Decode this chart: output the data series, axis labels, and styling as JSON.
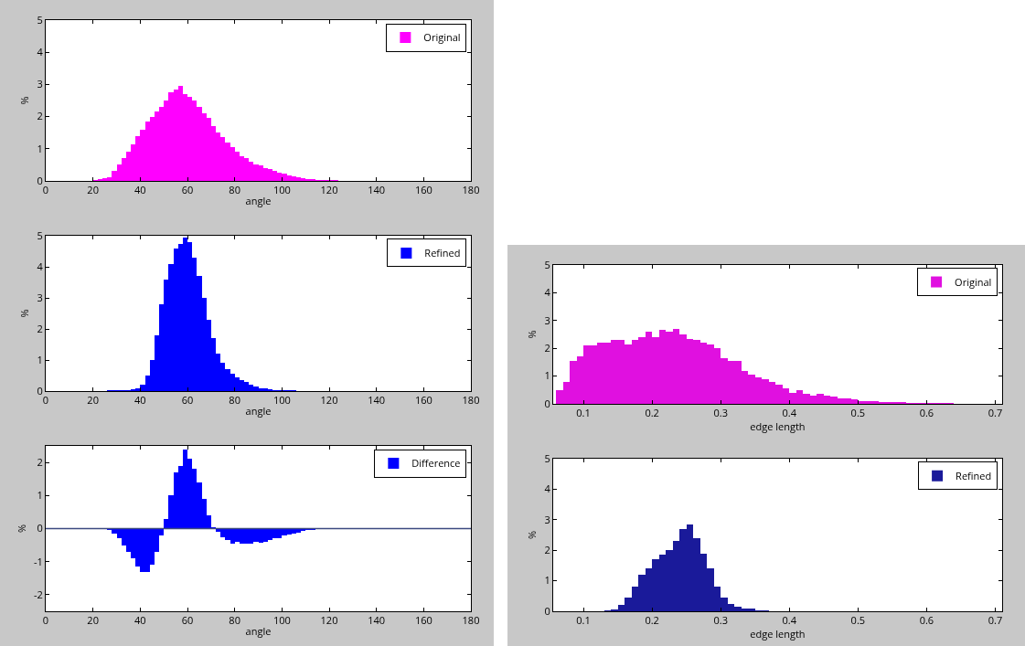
{
  "chart_data": [
    {
      "type": "histogram",
      "xlabel": "angle",
      "ylabel": "%",
      "legend": "top right",
      "xlim": [
        0,
        180
      ],
      "xticks": [
        0,
        20,
        40,
        60,
        80,
        100,
        120,
        140,
        160,
        180
      ],
      "ylim": [
        0,
        5
      ],
      "yticks": [
        0,
        1,
        2,
        3,
        4,
        5
      ],
      "grid": false,
      "bins": [
        20,
        22,
        24,
        26,
        28,
        30,
        32,
        34,
        36,
        38,
        40,
        42,
        44,
        46,
        48,
        50,
        52,
        54,
        56,
        58,
        60,
        62,
        64,
        66,
        68,
        70,
        72,
        74,
        76,
        78,
        80,
        82,
        84,
        86,
        88,
        90,
        92,
        94,
        96,
        98,
        100,
        102,
        104,
        106,
        108,
        110,
        112,
        114,
        116,
        118,
        120,
        122,
        124,
        126,
        128,
        130,
        132,
        134,
        136
      ],
      "series": [
        {
          "name": "Original",
          "color": "#ff00ff",
          "values": [
            0.02,
            0.05,
            0.08,
            0.12,
            0.3,
            0.5,
            0.7,
            0.9,
            1.15,
            1.4,
            1.6,
            1.85,
            2.0,
            2.15,
            2.3,
            2.5,
            2.75,
            2.85,
            2.95,
            2.7,
            2.6,
            2.5,
            2.3,
            2.1,
            1.95,
            1.7,
            1.5,
            1.35,
            1.2,
            1.05,
            0.9,
            0.78,
            0.7,
            0.6,
            0.52,
            0.48,
            0.4,
            0.38,
            0.3,
            0.25,
            0.22,
            0.18,
            0.15,
            0.12,
            0.08,
            0.07,
            0.05,
            0.04,
            0.03,
            0.03,
            0.02,
            0.02,
            0.01,
            0.01,
            0.01,
            0.01,
            0.01,
            0.01
          ]
        }
      ]
    },
    {
      "type": "histogram",
      "xlabel": "angle",
      "ylabel": "%",
      "legend": "top right",
      "xlim": [
        0,
        180
      ],
      "xticks": [
        0,
        20,
        40,
        60,
        80,
        100,
        120,
        140,
        160,
        180
      ],
      "ylim": [
        0,
        5
      ],
      "yticks": [
        0,
        1,
        2,
        3,
        4,
        5
      ],
      "grid": false,
      "bins": [
        26,
        28,
        30,
        32,
        34,
        36,
        38,
        40,
        42,
        44,
        46,
        48,
        50,
        52,
        54,
        56,
        58,
        60,
        62,
        64,
        66,
        68,
        70,
        72,
        74,
        76,
        78,
        80,
        82,
        84,
        86,
        88,
        90,
        92,
        94,
        96,
        98,
        100,
        102,
        104,
        106,
        108
      ],
      "series": [
        {
          "name": "Refined",
          "color": "#0000ff",
          "values": [
            0.02,
            0.03,
            0.03,
            0.03,
            0.04,
            0.05,
            0.1,
            0.2,
            0.5,
            1.0,
            1.8,
            2.8,
            3.6,
            4.1,
            4.6,
            4.75,
            4.95,
            4.8,
            4.3,
            3.7,
            3.0,
            2.3,
            1.7,
            1.2,
            0.9,
            0.7,
            0.55,
            0.45,
            0.35,
            0.28,
            0.2,
            0.15,
            0.1,
            0.08,
            0.05,
            0.04,
            0.03,
            0.02,
            0.02,
            0.02,
            0.01
          ]
        }
      ]
    },
    {
      "type": "histogram",
      "xlabel": "angle",
      "ylabel": "%",
      "legend": "top right",
      "xlim": [
        0,
        180
      ],
      "xticks": [
        0,
        20,
        40,
        60,
        80,
        100,
        120,
        140,
        160,
        180
      ],
      "ylim": [
        -2.5,
        2.5
      ],
      "yticks": [
        -2,
        -1,
        0,
        1,
        2
      ],
      "grid": false,
      "ref_lines": [
        {
          "axis": "y",
          "value": 0,
          "color": "#3c4a80"
        }
      ],
      "bins": [
        24,
        26,
        28,
        30,
        32,
        34,
        36,
        38,
        40,
        42,
        44,
        46,
        48,
        50,
        52,
        54,
        56,
        58,
        60,
        62,
        64,
        66,
        68,
        70,
        72,
        74,
        76,
        78,
        80,
        82,
        84,
        86,
        88,
        90,
        92,
        94,
        96,
        98,
        100,
        102,
        104,
        106,
        108,
        110,
        112,
        114,
        116
      ],
      "series": [
        {
          "name": "Difference",
          "color": "#0000ff",
          "values": [
            -0.02,
            -0.05,
            -0.15,
            -0.3,
            -0.5,
            -0.7,
            -0.9,
            -1.15,
            -1.3,
            -1.3,
            -1.1,
            -0.7,
            -0.2,
            0.3,
            1.0,
            1.7,
            1.9,
            2.4,
            2.1,
            1.8,
            1.4,
            0.9,
            0.4,
            0.05,
            -0.1,
            -0.25,
            -0.35,
            -0.45,
            -0.4,
            -0.45,
            -0.45,
            -0.45,
            -0.4,
            -0.42,
            -0.4,
            -0.35,
            -0.3,
            -0.28,
            -0.22,
            -0.18,
            -0.15,
            -0.12,
            -0.08,
            -0.05,
            -0.03,
            -0.02
          ]
        }
      ]
    },
    {
      "type": "histogram",
      "xlabel": "edge length",
      "ylabel": "%",
      "legend": "top right",
      "xlim": [
        0.056,
        0.71
      ],
      "xticks": [
        0.1,
        0.2,
        0.3,
        0.4,
        0.5,
        0.6,
        0.7
      ],
      "ylim": [
        0,
        5
      ],
      "yticks": [
        0,
        1,
        2,
        3,
        4,
        5
      ],
      "grid": false,
      "bins": [
        0.06,
        0.07,
        0.08,
        0.09,
        0.1,
        0.11,
        0.12,
        0.13,
        0.14,
        0.15,
        0.16,
        0.17,
        0.18,
        0.19,
        0.2,
        0.21,
        0.22,
        0.23,
        0.24,
        0.25,
        0.26,
        0.27,
        0.28,
        0.29,
        0.3,
        0.31,
        0.32,
        0.33,
        0.34,
        0.35,
        0.36,
        0.37,
        0.38,
        0.39,
        0.4,
        0.41,
        0.42,
        0.43,
        0.44,
        0.45,
        0.46,
        0.47,
        0.48,
        0.49,
        0.5,
        0.51,
        0.52,
        0.53,
        0.54,
        0.55,
        0.56,
        0.57,
        0.58,
        0.59,
        0.6,
        0.61,
        0.62,
        0.63,
        0.64,
        0.65,
        0.66,
        0.67,
        0.68,
        0.69,
        0.7,
        0.71
      ],
      "series": [
        {
          "name": "Original",
          "color": "#e010e0",
          "values": [
            0.5,
            0.8,
            1.55,
            1.7,
            2.1,
            2.1,
            2.2,
            2.2,
            2.3,
            2.3,
            2.15,
            2.3,
            2.4,
            2.6,
            2.4,
            2.65,
            2.6,
            2.7,
            2.5,
            2.35,
            2.3,
            2.2,
            2.15,
            2.0,
            1.65,
            1.55,
            1.55,
            1.2,
            1.05,
            0.95,
            0.9,
            0.8,
            0.7,
            0.55,
            0.4,
            0.5,
            0.35,
            0.3,
            0.35,
            0.3,
            0.25,
            0.2,
            0.2,
            0.15,
            0.1,
            0.1,
            0.1,
            0.08,
            0.07,
            0.06,
            0.05,
            0.04,
            0.04,
            0.03,
            0.03,
            0.02,
            0.02,
            0.02,
            0.01,
            0.01,
            0.01,
            0.01,
            0.01,
            0.01,
            0.01
          ]
        }
      ]
    },
    {
      "type": "histogram",
      "xlabel": "edge length",
      "ylabel": "%",
      "legend": "top right",
      "xlim": [
        0.056,
        0.71
      ],
      "xticks": [
        0.1,
        0.2,
        0.3,
        0.4,
        0.5,
        0.6,
        0.7
      ],
      "ylim": [
        0,
        5
      ],
      "yticks": [
        0,
        1,
        2,
        3,
        4,
        5
      ],
      "grid": false,
      "bins": [
        0.13,
        0.14,
        0.15,
        0.16,
        0.17,
        0.18,
        0.19,
        0.2,
        0.21,
        0.22,
        0.23,
        0.24,
        0.25,
        0.26,
        0.27,
        0.28,
        0.29,
        0.3,
        0.31,
        0.32,
        0.33,
        0.34,
        0.35,
        0.36,
        0.37,
        0.38
      ],
      "series": [
        {
          "name": "Refined",
          "color": "#1a1a9a",
          "values": [
            0.02,
            0.05,
            0.2,
            0.45,
            0.8,
            1.2,
            1.4,
            1.7,
            1.85,
            2.0,
            2.3,
            2.7,
            2.85,
            2.4,
            1.9,
            1.4,
            0.8,
            0.45,
            0.25,
            0.15,
            0.1,
            0.08,
            0.04,
            0.02,
            0.01
          ]
        }
      ]
    }
  ]
}
